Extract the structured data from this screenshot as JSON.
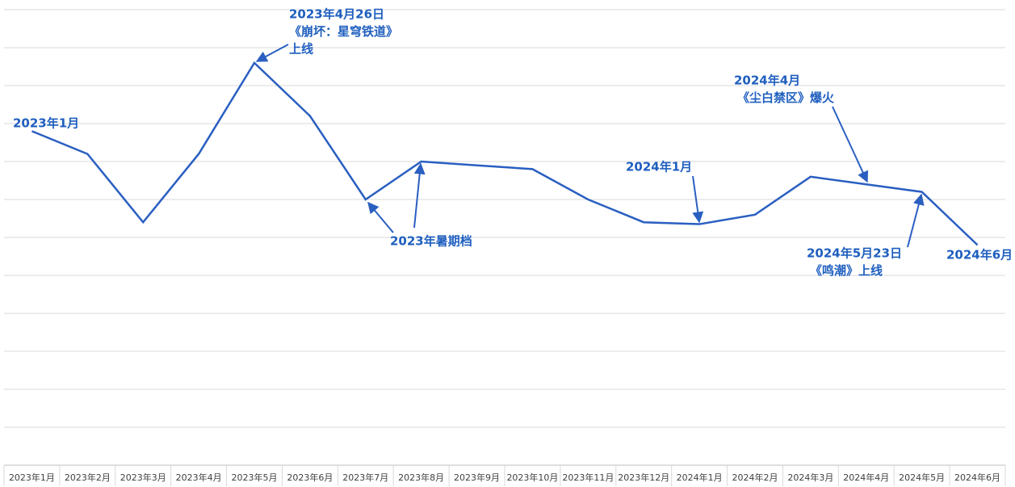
{
  "chart_data": {
    "type": "line",
    "categories": [
      "2023年1月",
      "2023年2月",
      "2023年3月",
      "2023年4月",
      "2023年5月",
      "2023年6月",
      "2023年7月",
      "2023年8月",
      "2023年9月",
      "2023年10月",
      "2023年11月",
      "2023年12月",
      "2024年1月",
      "2024年2月",
      "2024年3月",
      "2024年4月",
      "2024年5月",
      "2024年6月"
    ],
    "series": [
      {
        "color": "#2a5fc1",
        "values": [
          8.8,
          8.2,
          6.4,
          8.2,
          10.6,
          9.2,
          7.0,
          8.0,
          7.9,
          7.8,
          7.0,
          6.4,
          6.35,
          6.6,
          7.6,
          7.4,
          7.2,
          5.8
        ]
      }
    ],
    "ylim": [
      0,
      12
    ],
    "yticks": [
      0,
      1,
      2,
      3,
      4,
      5,
      6,
      7,
      8,
      9,
      10,
      11,
      12
    ],
    "grid": true,
    "annotations": [
      {
        "lines": [
          "2023年1月"
        ]
      },
      {
        "lines": [
          "2023年4月26日",
          "《崩坏：星穹铁道》",
          "上线"
        ]
      },
      {
        "lines": [
          "2023年暑期档"
        ]
      },
      {
        "lines": [
          "2024年1月"
        ]
      },
      {
        "lines": [
          "2024年4月",
          "《尘白禁区》爆火"
        ]
      },
      {
        "lines": [
          "2024年5月23日",
          "《鸣潮》上线"
        ]
      },
      {
        "lines": [
          "2024年6月"
        ]
      }
    ]
  }
}
